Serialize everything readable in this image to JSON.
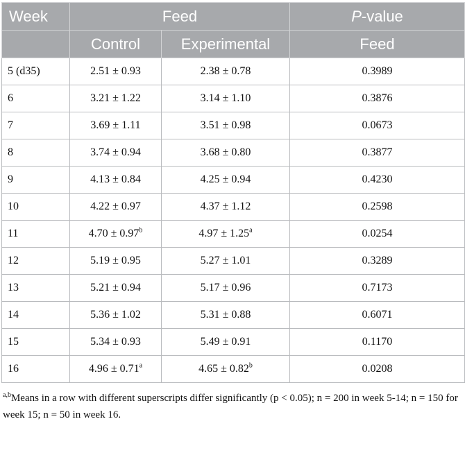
{
  "header": {
    "week": "Week",
    "feed": "Feed",
    "pvalue_p": "P",
    "pvalue_rest": "-value",
    "control": "Control",
    "experimental": "Experimental",
    "pvalue_sub": "Feed"
  },
  "rows": [
    {
      "week": "5 (d35)",
      "control": "2.51 ± 0.93",
      "control_sup": "",
      "experimental": "2.38 ± 0.78",
      "experimental_sup": "",
      "p": "0.3989"
    },
    {
      "week": "6",
      "control": "3.21 ± 1.22",
      "control_sup": "",
      "experimental": "3.14 ± 1.10",
      "experimental_sup": "",
      "p": "0.3876"
    },
    {
      "week": "7",
      "control": "3.69 ± 1.11",
      "control_sup": "",
      "experimental": "3.51 ± 0.98",
      "experimental_sup": "",
      "p": "0.0673"
    },
    {
      "week": "8",
      "control": "3.74 ± 0.94",
      "control_sup": "",
      "experimental": "3.68 ± 0.80",
      "experimental_sup": "",
      "p": "0.3877"
    },
    {
      "week": "9",
      "control": "4.13 ± 0.84",
      "control_sup": "",
      "experimental": "4.25 ± 0.94",
      "experimental_sup": "",
      "p": "0.4230"
    },
    {
      "week": "10",
      "control": "4.22 ± 0.97",
      "control_sup": "",
      "experimental": "4.37 ± 1.12",
      "experimental_sup": "",
      "p": "0.2598"
    },
    {
      "week": "11",
      "control": "4.70 ± 0.97",
      "control_sup": "b",
      "experimental": "4.97 ± 1.25",
      "experimental_sup": "a",
      "p": "0.0254"
    },
    {
      "week": "12",
      "control": "5.19 ± 0.95",
      "control_sup": "",
      "experimental": "5.27 ± 1.01",
      "experimental_sup": "",
      "p": "0.3289"
    },
    {
      "week": "13",
      "control": "5.21 ± 0.94",
      "control_sup": "",
      "experimental": "5.17 ± 0.96",
      "experimental_sup": "",
      "p": "0.7173"
    },
    {
      "week": "14",
      "control": "5.36 ± 1.02",
      "control_sup": "",
      "experimental": "5.31 ± 0.88",
      "experimental_sup": "",
      "p": "0.6071"
    },
    {
      "week": "15",
      "control": "5.34 ± 0.93",
      "control_sup": "",
      "experimental": "5.49 ± 0.91",
      "experimental_sup": "",
      "p": "0.1170"
    },
    {
      "week": "16",
      "control": "4.96 ± 0.71",
      "control_sup": "a",
      "experimental": "4.65 ± 0.82",
      "experimental_sup": "b",
      "p": "0.0208"
    }
  ],
  "footnote": {
    "sup": "a,b",
    "text": "Means in a row with different superscripts differ significantly (p < 0.05); n = 200 in week 5-14; n = 150 for week 15; n = 50 in week 16."
  }
}
